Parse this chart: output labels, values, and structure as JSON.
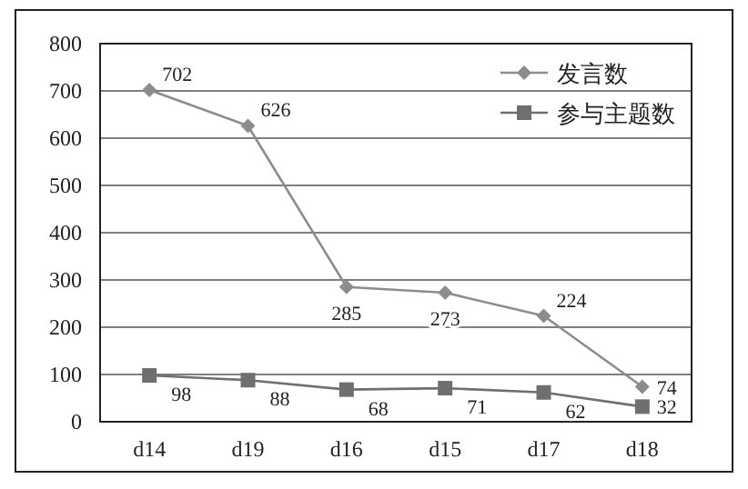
{
  "chart_data": {
    "type": "line",
    "categories": [
      "d14",
      "d19",
      "d16",
      "d15",
      "d17",
      "d18"
    ],
    "series": [
      {
        "name": "发言数",
        "color": "#8c8c8c",
        "marker": "diamond",
        "values": [
          702,
          626,
          285,
          273,
          224,
          74
        ]
      },
      {
        "name": "参与主题数",
        "color": "#6f6f6f",
        "marker": "square",
        "values": [
          98,
          88,
          68,
          71,
          62,
          32
        ]
      }
    ],
    "ylim": [
      0,
      800
    ],
    "yticks": [
      0,
      100,
      200,
      300,
      400,
      500,
      600,
      700,
      800
    ],
    "grid": "y",
    "legend": "top right",
    "data_labels": true
  }
}
